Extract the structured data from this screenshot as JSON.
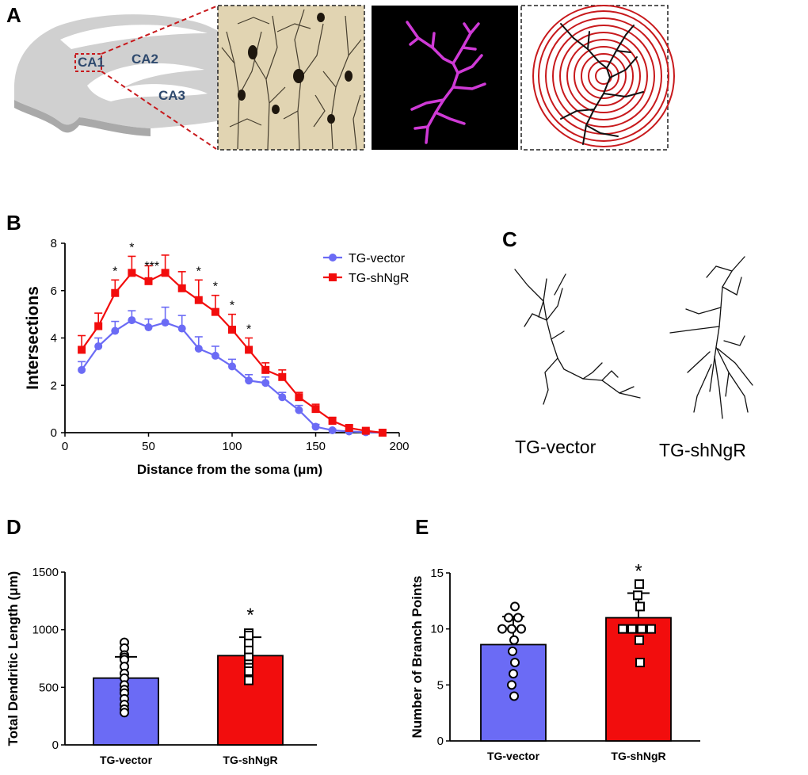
{
  "panel_labels": {
    "a": "A",
    "b": "B",
    "c": "C",
    "d": "D",
    "e": "E"
  },
  "panel_a": {
    "regions": [
      "CA1",
      "CA2",
      "CA3"
    ]
  },
  "panel_c": {
    "labels": [
      "TG-vector",
      "TG-shNgR"
    ]
  },
  "colors": {
    "vector": "#6b6bf5",
    "shngr": "#f20d0d",
    "sig_box": "#c8191c",
    "trace": "#cf3ad6"
  },
  "chart_data": [
    {
      "id": "sholl",
      "type": "line",
      "title": "",
      "xlabel": "Distance from the soma (μm)",
      "ylabel": "Intersections",
      "xlim": [
        0,
        200
      ],
      "ylim": [
        0,
        8
      ],
      "xticks": [
        "0",
        "50",
        "100",
        "150",
        "200"
      ],
      "yticks": [
        "0",
        "2",
        "4",
        "6",
        "8"
      ],
      "legend_position": "top-right",
      "x": [
        10,
        20,
        30,
        40,
        50,
        60,
        70,
        80,
        90,
        100,
        110,
        120,
        130,
        140,
        150,
        160,
        170,
        180,
        190
      ],
      "series": [
        {
          "name": "TG-vector",
          "color": "#6b6bf5",
          "values": [
            2.65,
            3.65,
            4.3,
            4.75,
            4.45,
            4.65,
            4.4,
            3.55,
            3.25,
            2.8,
            2.2,
            2.1,
            1.5,
            0.95,
            0.25,
            0.1,
            0.05,
            0.02,
            0.0
          ],
          "errors": [
            0.35,
            0.35,
            0.4,
            0.4,
            0.35,
            0.65,
            0.55,
            0.5,
            0.4,
            0.3,
            0.25,
            0.25,
            0.2,
            0.2,
            0.1,
            0.05,
            0.05,
            0.02,
            0.0
          ]
        },
        {
          "name": "TG-shNgR",
          "color": "#f20d0d",
          "values": [
            3.5,
            4.5,
            5.9,
            6.75,
            6.4,
            6.75,
            6.1,
            5.6,
            5.1,
            4.35,
            3.5,
            2.65,
            2.35,
            1.5,
            1.0,
            0.5,
            0.2,
            0.08,
            0.0
          ],
          "errors": [
            0.6,
            0.55,
            0.55,
            0.7,
            0.65,
            0.75,
            0.7,
            0.85,
            0.7,
            0.65,
            0.5,
            0.3,
            0.3,
            0.2,
            0.2,
            0.15,
            0.1,
            0.05,
            0.0
          ]
        }
      ],
      "significance": [
        {
          "x": 30,
          "label": "*"
        },
        {
          "x": 40,
          "label": "*"
        },
        {
          "x": 50,
          "label": "***"
        },
        {
          "x": 80,
          "label": "*"
        },
        {
          "x": 90,
          "label": "*"
        },
        {
          "x": 100,
          "label": "*"
        },
        {
          "x": 110,
          "label": "*"
        }
      ]
    },
    {
      "id": "length",
      "type": "bar",
      "title": "",
      "xlabel": "",
      "ylabel": "Total Dendritic Length (μm)",
      "ylim": [
        0,
        1500
      ],
      "yticks": [
        "0",
        "500",
        "1000",
        "1500"
      ],
      "categories": [
        "TG-vector",
        "TG-shNgR"
      ],
      "values": [
        580,
        775
      ],
      "errors": [
        185,
        160
      ],
      "colors": [
        "#6b6bf5",
        "#f20d0d"
      ],
      "significance": [
        "",
        "*"
      ],
      "points": [
        [
          890,
          840,
          780,
          760,
          740,
          680,
          620,
          580,
          520,
          480,
          450,
          400,
          350,
          310,
          280
        ],
        [
          970,
          950,
          880,
          820,
          760,
          700,
          670,
          640,
          560
        ]
      ]
    },
    {
      "id": "branch",
      "type": "bar",
      "title": "",
      "xlabel": "",
      "ylabel": "Number of Branch Points",
      "ylim": [
        0,
        15
      ],
      "yticks": [
        "0",
        "5",
        "10",
        "15"
      ],
      "categories": [
        "TG-vector",
        "TG-shNgR"
      ],
      "values": [
        8.6,
        11.0
      ],
      "errors": [
        2.5,
        2.2
      ],
      "colors": [
        "#6b6bf5",
        "#f20d0d"
      ],
      "significance": [
        "",
        "*"
      ],
      "points": [
        [
          12,
          11,
          11,
          10,
          10,
          10,
          9,
          8,
          7,
          6,
          5,
          4
        ],
        [
          14,
          13,
          12,
          10,
          10,
          10,
          10,
          9,
          7
        ]
      ]
    }
  ]
}
